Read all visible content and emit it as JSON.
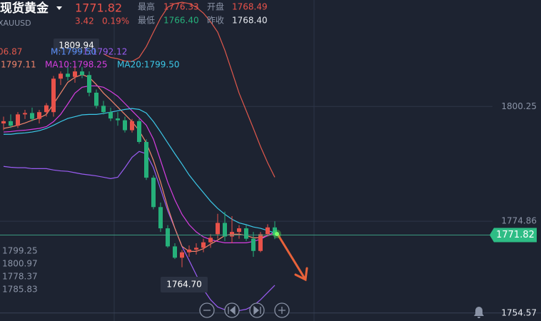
{
  "header": {
    "title": "现货黄金",
    "price": "1771.82",
    "change": "3.42",
    "change_pct": "0.19%",
    "symbol": "XAUUSD",
    "stats": [
      [
        "最高",
        "1776.33"
      ],
      [
        "开盘",
        "1768.49"
      ],
      [
        "最低",
        "1766.40"
      ],
      [
        "昨收",
        "1768.40"
      ]
    ]
  },
  "side_values": [
    "1799.25",
    "1800.97",
    "1778.37",
    "1785.83"
  ],
  "chart_data": {
    "type": "candlestick",
    "ylim": [
      1752.8,
      1823.8
    ],
    "yticks": [
      1800.25,
      1774.86
    ],
    "price_line": 1771.82,
    "alert_line": 1754.57,
    "up_color": "#e8524a",
    "down_color": "#26b07a",
    "annotations": [
      "1809.94",
      "1764.70"
    ],
    "boll_mid": {
      "name": "M:1799.50",
      "color": "#5b8ff9"
    },
    "open": [
      1796.5,
      1797,
      1796,
      1798.5,
      1798.8,
      1797.5,
      1799,
      1799,
      1806.4,
      1807.5,
      1806.8,
      1808,
      1807.2,
      1803.3,
      1800.4,
      1799,
      1797.6,
      1797.2,
      1795,
      1797,
      1792.4,
      1784.5,
      1778,
      1773.3,
      1769.3,
      1766.8,
      1768,
      1768.6,
      1769,
      1770.2,
      1772,
      1774.5,
      1771.5,
      1772.5,
      1773.3,
      1771,
      1768.3,
      1772,
      1773.5
    ],
    "high": [
      1798,
      1798.5,
      1799,
      1799.5,
      1800,
      1799.5,
      1801,
      1807,
      1808,
      1809,
      1809.94,
      1809,
      1808,
      1804,
      1801.5,
      1800,
      1799,
      1798,
      1797.5,
      1797.5,
      1793,
      1785,
      1779,
      1774,
      1770,
      1768.5,
      1769.5,
      1770,
      1771,
      1772,
      1776.5,
      1777,
      1776,
      1774,
      1774,
      1772.5,
      1772.5,
      1774.2,
      1774.86
    ],
    "low": [
      1795,
      1795.5,
      1795.5,
      1797.5,
      1797,
      1796.5,
      1798,
      1798,
      1805,
      1806,
      1805.5,
      1806.5,
      1802.5,
      1799.8,
      1798.5,
      1797,
      1796,
      1794.5,
      1794.5,
      1792,
      1784,
      1777.5,
      1772.5,
      1769,
      1766.5,
      1764.7,
      1767,
      1767.5,
      1768,
      1769,
      1771,
      1770.5,
      1770,
      1771,
      1770.5,
      1767,
      1768,
      1771.5,
      1770.9
    ],
    "close": [
      1797,
      1796,
      1798.5,
      1798.8,
      1797.5,
      1799,
      1800.5,
      1806.4,
      1807.5,
      1806.8,
      1808,
      1807.2,
      1803.3,
      1800.4,
      1799,
      1797.6,
      1797.2,
      1795,
      1797,
      1792.4,
      1784.5,
      1778,
      1773.3,
      1769.3,
      1766.8,
      1768,
      1768.6,
      1769,
      1770.2,
      1771.2,
      1774.5,
      1771.5,
      1772.5,
      1773.3,
      1771,
      1768.3,
      1772,
      1773.5,
      1771.82
    ],
    "series": [
      {
        "name": "06.87",
        "color": "#e0584c",
        "values": [
          null,
          null,
          null,
          null,
          null,
          null,
          null,
          null,
          null,
          null,
          null,
          null,
          null,
          null,
          1811.9,
          1811.1,
          1810.8,
          1810.3,
          1810.2,
          1811.1,
          1813.5,
          1816.7,
          1819.8,
          1822.2,
          1823.0,
          1823.3,
          1823.0,
          1822.2,
          1820.9,
          1819.0,
          1816.7,
          1812.7,
          1808.0,
          1803.2,
          1799.3,
          1795.4,
          1791.4,
          1787.8,
          1784.6
        ]
      },
      {
        "name": "L:1792.12",
        "color": "#9a5cf2",
        "values": [
          1787.0,
          1786.8,
          1786.7,
          1786.7,
          1786.5,
          1786.5,
          1786.5,
          1786.2,
          1786.0,
          1785.9,
          1785.6,
          1785.3,
          1785.1,
          1784.9,
          1784.6,
          1784.3,
          1784.6,
          1786.7,
          1789.0,
          1790.3,
          1789.8,
          1786.7,
          1782.0,
          1777.2,
          1773.3,
          1769.3,
          1766.2,
          1763.0,
          1759.8,
          1757.5,
          1755.9,
          1755.3,
          1755.1,
          1755.1,
          1755.4,
          1756.2,
          1757.5,
          1759.1,
          1760.7
        ]
      },
      {
        "name": ":1797.11",
        "color": "#f2866c",
        "values": [
          1795.4,
          1795.7,
          1796.1,
          1796.6,
          1797.2,
          1797.7,
          1798.5,
          1800.8,
          1803.2,
          1805.6,
          1806.7,
          1807.3,
          1806.7,
          1805.1,
          1803.2,
          1801.7,
          1800.1,
          1798.5,
          1796.9,
          1794.9,
          1792.2,
          1788.3,
          1783.5,
          1778.0,
          1773.3,
          1769.3,
          1768.2,
          1768.2,
          1768.8,
          1769.8,
          1770.7,
          1771.7,
          1772.0,
          1772.0,
          1771.7,
          1771.2,
          1771.2,
          1771.7,
          1772.0
        ]
      },
      {
        "name": "MA10:1798.25",
        "color": "#d63ee0",
        "values": [
          1794.6,
          1794.7,
          1794.9,
          1795.0,
          1795.2,
          1795.4,
          1795.8,
          1796.9,
          1798.5,
          1800.8,
          1803.2,
          1804.5,
          1804.8,
          1804.8,
          1804.5,
          1803.6,
          1802.5,
          1800.9,
          1799.3,
          1797.7,
          1796.1,
          1793.0,
          1788.3,
          1783.5,
          1779.6,
          1776.4,
          1774.1,
          1772.5,
          1771.4,
          1770.8,
          1770.4,
          1770.1,
          1770.1,
          1770.1,
          1770.1,
          1770.4,
          1770.9,
          1771.7,
          1772.5
        ]
      },
      {
        "name": "MA20:1799.50",
        "color": "#3cc8e8",
        "values": [
          1794.1,
          1794.1,
          1794.3,
          1794.4,
          1794.6,
          1794.9,
          1795.4,
          1796.1,
          1796.9,
          1797.6,
          1798.0,
          1798.4,
          1798.5,
          1798.5,
          1798.7,
          1799.0,
          1799.3,
          1799.6,
          1799.8,
          1799.6,
          1798.8,
          1796.9,
          1794.6,
          1792.2,
          1789.8,
          1787.5,
          1785.1,
          1783.1,
          1781.2,
          1779.3,
          1777.7,
          1776.4,
          1775.3,
          1774.5,
          1774.1,
          1773.6,
          1773.3,
          1772.8,
          1772.3
        ]
      }
    ]
  }
}
